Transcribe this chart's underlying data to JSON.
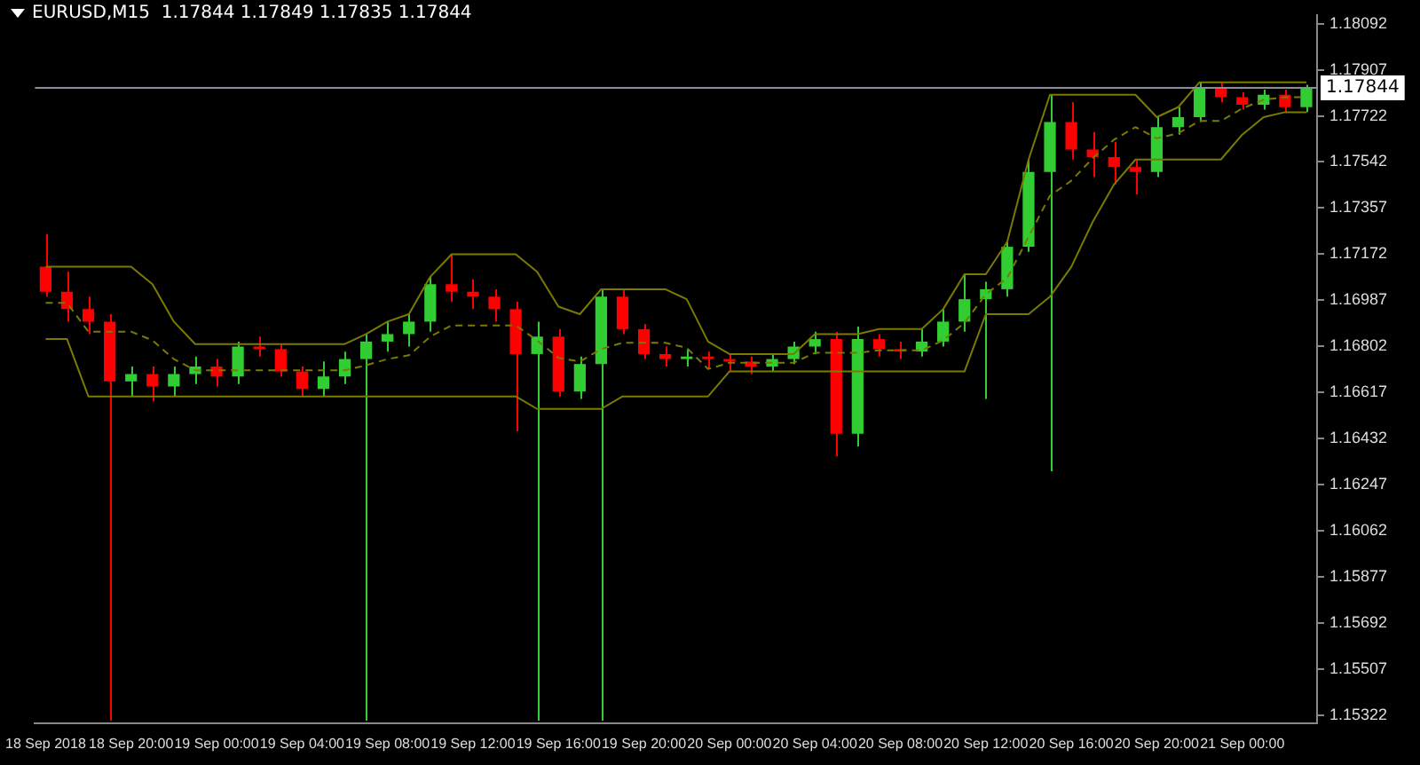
{
  "chart_data": {
    "type": "candlestick",
    "title": "EURUSD,M15  1.17844 1.17849 1.17835 1.17844",
    "categories": [
      "18 Sep 2018",
      null,
      null,
      null,
      "18 Sep 20:00",
      null,
      null,
      null,
      "19 Sep 00:00",
      null,
      null,
      null,
      "19 Sep 04:00",
      null,
      null,
      null,
      "19 Sep 08:00",
      null,
      null,
      null,
      "19 Sep 12:00",
      null,
      null,
      null,
      "19 Sep 16:00",
      null,
      null,
      null,
      "19 Sep 20:00",
      null,
      null,
      null,
      "20 Sep 00:00",
      null,
      null,
      null,
      "20 Sep 04:00",
      null,
      null,
      null,
      "20 Sep 08:00",
      null,
      null,
      null,
      "20 Sep 12:00",
      null,
      null,
      null,
      "20 Sep 16:00",
      null,
      null,
      null,
      "20 Sep 20:00",
      null,
      null,
      null,
      "21 Sep 00:00",
      null,
      null,
      null
    ],
    "ohlc": [
      [
        1.1712,
        1.1725,
        1.17,
        1.1702
      ],
      [
        1.1702,
        1.171,
        1.169,
        1.1695
      ],
      [
        1.1695,
        1.17,
        1.1685,
        1.169
      ],
      [
        1.169,
        1.1693,
        1.153,
        1.1666
      ],
      [
        1.1666,
        1.1672,
        1.166,
        1.1669
      ],
      [
        1.1669,
        1.1672,
        1.1658,
        1.1664
      ],
      [
        1.1664,
        1.1672,
        1.166,
        1.1669
      ],
      [
        1.1669,
        1.1676,
        1.1665,
        1.1672
      ],
      [
        1.1672,
        1.1675,
        1.1664,
        1.1668
      ],
      [
        1.1668,
        1.1682,
        1.1665,
        1.168
      ],
      [
        1.168,
        1.1684,
        1.1676,
        1.1679
      ],
      [
        1.1679,
        1.1681,
        1.1668,
        1.167
      ],
      [
        1.167,
        1.1672,
        1.166,
        1.1663
      ],
      [
        1.1663,
        1.1674,
        1.166,
        1.1668
      ],
      [
        1.1668,
        1.1678,
        1.1665,
        1.1675
      ],
      [
        1.1675,
        1.1685,
        1.153,
        1.1682
      ],
      [
        1.1682,
        1.169,
        1.1678,
        1.1685
      ],
      [
        1.1685,
        1.1693,
        1.168,
        1.169
      ],
      [
        1.169,
        1.1708,
        1.1686,
        1.1705
      ],
      [
        1.1705,
        1.1717,
        1.1698,
        1.1702
      ],
      [
        1.1702,
        1.1707,
        1.1695,
        1.17
      ],
      [
        1.17,
        1.1703,
        1.169,
        1.1695
      ],
      [
        1.1695,
        1.1698,
        1.1646,
        1.1677
      ],
      [
        1.1677,
        1.169,
        1.153,
        1.1684
      ],
      [
        1.1684,
        1.1687,
        1.166,
        1.1662
      ],
      [
        1.1662,
        1.1676,
        1.1659,
        1.1673
      ],
      [
        1.1673,
        1.1703,
        1.153,
        1.17
      ],
      [
        1.17,
        1.1703,
        1.1685,
        1.1687
      ],
      [
        1.1687,
        1.1689,
        1.1675,
        1.1677
      ],
      [
        1.1677,
        1.168,
        1.1672,
        1.1675
      ],
      [
        1.1675,
        1.1679,
        1.1672,
        1.1676
      ],
      [
        1.1676,
        1.1678,
        1.1671,
        1.1675
      ],
      [
        1.1675,
        1.1677,
        1.167,
        1.1674
      ],
      [
        1.1674,
        1.1676,
        1.1669,
        1.1672
      ],
      [
        1.1672,
        1.1677,
        1.167,
        1.1675
      ],
      [
        1.1675,
        1.1682,
        1.1673,
        1.168
      ],
      [
        1.168,
        1.1686,
        1.1677,
        1.1683
      ],
      [
        1.1683,
        1.1686,
        1.1636,
        1.1645
      ],
      [
        1.1645,
        1.1688,
        1.164,
        1.1683
      ],
      [
        1.1683,
        1.1685,
        1.1676,
        1.1679
      ],
      [
        1.1679,
        1.1682,
        1.1675,
        1.1678
      ],
      [
        1.1678,
        1.1687,
        1.1676,
        1.1682
      ],
      [
        1.1682,
        1.1695,
        1.168,
        1.169
      ],
      [
        1.169,
        1.1709,
        1.1686,
        1.1699
      ],
      [
        1.1699,
        1.1706,
        1.1659,
        1.1703
      ],
      [
        1.1703,
        1.1722,
        1.17,
        1.172
      ],
      [
        1.172,
        1.1755,
        1.1718,
        1.175
      ],
      [
        1.175,
        1.1781,
        1.163,
        1.177
      ],
      [
        1.177,
        1.1778,
        1.1755,
        1.1759
      ],
      [
        1.1759,
        1.1766,
        1.1748,
        1.1756
      ],
      [
        1.1756,
        1.1762,
        1.1745,
        1.1752
      ],
      [
        1.1752,
        1.1755,
        1.1741,
        1.175
      ],
      [
        1.175,
        1.1772,
        1.1748,
        1.1768
      ],
      [
        1.1768,
        1.1776,
        1.1765,
        1.1772
      ],
      [
        1.1772,
        1.1786,
        1.177,
        1.1784
      ],
      [
        1.1784,
        1.1786,
        1.1778,
        1.178
      ],
      [
        1.178,
        1.1782,
        1.1775,
        1.1777
      ],
      [
        1.1777,
        1.1783,
        1.1775,
        1.1781
      ],
      [
        1.1781,
        1.1783,
        1.1774,
        1.1776
      ],
      [
        1.1776,
        1.1785,
        1.1774,
        1.1784
      ]
    ],
    "colors": [
      "#ff0000",
      "#ff0000",
      "#ff0000",
      "#ff0000",
      "#32cd32",
      "#ff0000",
      "#32cd32",
      "#32cd32",
      "#ff0000",
      "#32cd32",
      "#ff0000",
      "#ff0000",
      "#ff0000",
      "#32cd32",
      "#32cd32",
      "#32cd32",
      "#32cd32",
      "#32cd32",
      "#32cd32",
      "#ff0000",
      "#ff0000",
      "#ff0000",
      "#ff0000",
      "#32cd32",
      "#ff0000",
      "#32cd32",
      "#32cd32",
      "#ff0000",
      "#ff0000",
      "#ff0000",
      "#32cd32",
      "#ff0000",
      "#ff0000",
      "#ff0000",
      "#32cd32",
      "#32cd32",
      "#32cd32",
      "#ff0000",
      "#32cd32",
      "#ff0000",
      "#ff0000",
      "#32cd32",
      "#32cd32",
      "#32cd32",
      "#32cd32",
      "#32cd32",
      "#32cd32",
      "#32cd32",
      "#ff0000",
      "#ff0000",
      "#ff0000",
      "#ff0000",
      "#32cd32",
      "#32cd32",
      "#32cd32",
      "#ff0000",
      "#ff0000",
      "#32cd32",
      "#ff0000",
      "#32cd32"
    ],
    "series": [
      {
        "type": "line",
        "color": "#7a7a00",
        "line_style": "solid",
        "values": [
          1.1712,
          1.1712,
          1.1712,
          1.1712,
          1.1712,
          1.1705,
          1.169,
          1.1681,
          1.1681,
          1.1681,
          1.1681,
          1.1681,
          1.1681,
          1.1681,
          1.1681,
          1.1685,
          1.169,
          1.1693,
          1.1708,
          1.1717,
          1.1717,
          1.1717,
          1.1717,
          1.171,
          1.1696,
          1.1693,
          1.1703,
          1.1703,
          1.1703,
          1.1703,
          1.1699,
          1.1682,
          1.1677,
          1.1677,
          1.1677,
          1.1677,
          1.1685,
          1.1685,
          1.1685,
          1.1687,
          1.1687,
          1.1687,
          1.1695,
          1.1709,
          1.1709,
          1.1722,
          1.1755,
          1.1781,
          1.1781,
          1.1781,
          1.1781,
          1.1781,
          1.1772,
          1.1776,
          1.1786,
          1.1786,
          1.1786,
          1.1786,
          1.1786,
          1.1786
        ]
      },
      {
        "type": "line",
        "color": "#7a7a00",
        "line_style": "dashed",
        "values": [
          1.16975,
          1.16975,
          1.1686,
          1.1686,
          1.1686,
          1.16825,
          1.1675,
          1.16705,
          1.16705,
          1.16705,
          1.16705,
          1.16705,
          1.16705,
          1.16705,
          1.16705,
          1.16725,
          1.1675,
          1.16765,
          1.1684,
          1.16885,
          1.16885,
          1.16885,
          1.16885,
          1.16825,
          1.16755,
          1.1674,
          1.1679,
          1.16815,
          1.16815,
          1.16815,
          1.16795,
          1.1671,
          1.16735,
          1.16735,
          1.16735,
          1.16735,
          1.16775,
          1.16775,
          1.16775,
          1.16785,
          1.16785,
          1.16785,
          1.16825,
          1.16895,
          1.1701,
          1.17075,
          1.1724,
          1.17405,
          1.17465,
          1.17555,
          1.1763,
          1.1768,
          1.17635,
          1.17655,
          1.17705,
          1.17705,
          1.17755,
          1.1779,
          1.178,
          1.178
        ]
      },
      {
        "type": "line",
        "color": "#7a7a00",
        "line_style": "solid",
        "values": [
          1.1683,
          1.1683,
          1.166,
          1.166,
          1.166,
          1.166,
          1.166,
          1.166,
          1.166,
          1.166,
          1.166,
          1.166,
          1.166,
          1.166,
          1.166,
          1.166,
          1.166,
          1.166,
          1.166,
          1.166,
          1.166,
          1.166,
          1.166,
          1.1655,
          1.1655,
          1.1655,
          1.1655,
          1.166,
          1.166,
          1.166,
          1.166,
          1.166,
          1.167,
          1.167,
          1.167,
          1.167,
          1.167,
          1.167,
          1.167,
          1.167,
          1.167,
          1.167,
          1.167,
          1.167,
          1.1693,
          1.1693,
          1.1693,
          1.17,
          1.1712,
          1.173,
          1.1745,
          1.1755,
          1.1755,
          1.1755,
          1.1755,
          1.1755,
          1.1765,
          1.1772,
          1.1774,
          1.1774
        ]
      }
    ],
    "ylim": [
      1.1529,
      1.1813
    ],
    "yticks": [
      1.18092,
      1.17907,
      1.17722,
      1.17542,
      1.17357,
      1.17172,
      1.16987,
      1.16802,
      1.16617,
      1.16432,
      1.16247,
      1.16062,
      1.15877,
      1.15692,
      1.15507,
      1.15322
    ],
    "ref_lines": [
      {
        "axis": "y",
        "value": 1.17844,
        "label": "1.17844",
        "color": "#8c8c9c"
      }
    ],
    "grid": false,
    "legend": false
  }
}
